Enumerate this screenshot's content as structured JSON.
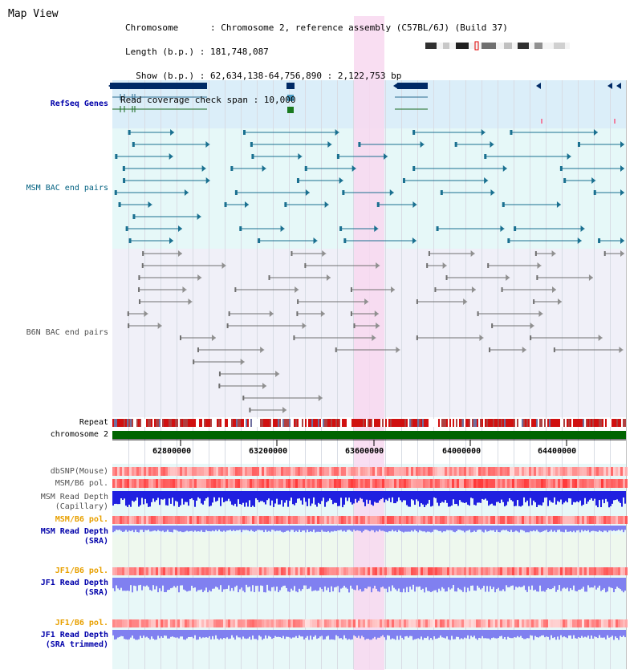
{
  "page": {
    "title": "Map View"
  },
  "info": {
    "chromosome_line": "Chromosome      : Chromosome 2, reference assembly (C57BL/6J) (Build 37)",
    "length_line": "Length (b.p.) : 181,748,087",
    "show_line": "  Show (b.p.) : 62,634,138-64,756,890 : 2,122,753 bp",
    "coverage_line": "Read coverage check span : 10,000"
  },
  "tracks": {
    "refseq": "RefSeq Genes",
    "msm_bac": "MSM BAC end pairs",
    "b6n_bac": "B6N BAC end pairs",
    "repeat": "Repeat",
    "chromosome": "chromosome 2",
    "dbsnp": "dbSNP(Mouse)",
    "msm_b6_pol_1": "MSM/B6 pol.",
    "msm_depth_cap_1": "MSM Read Depth",
    "msm_depth_cap_2": "(Capillary)",
    "msm_b6_pol_2": "MSM/B6 pol.",
    "msm_depth_sra_1": "MSM Read Depth",
    "msm_depth_sra_2": "(SRA)",
    "jf1_b6_pol_1": "JF1/B6 pol.",
    "jf1_depth_sra_1": "JF1 Read Depth",
    "jf1_depth_sra_2": "(SRA)",
    "jf1_b6_pol_2": "JF1/B6 pol.",
    "jf1_depth_trim_1": "JF1 Read Depth",
    "jf1_depth_trim_2": "(SRA trimmed)"
  },
  "axis": {
    "ticks": [
      "62800000",
      "63200000",
      "63600000",
      "64000000",
      "64400000"
    ]
  },
  "colors": {
    "refseq_bg": "#dbeef9",
    "msm_bg": "#e6f8f8",
    "b6n_bg": "#f0f0f8",
    "highlight": "#f8d8f0",
    "chromosome": "#006400",
    "depth_blue": "#2020e0",
    "depth_light": "#8080f0",
    "gene_dark": "#002a66",
    "teal": "#1a7090",
    "gray_pair": "#707070"
  }
}
